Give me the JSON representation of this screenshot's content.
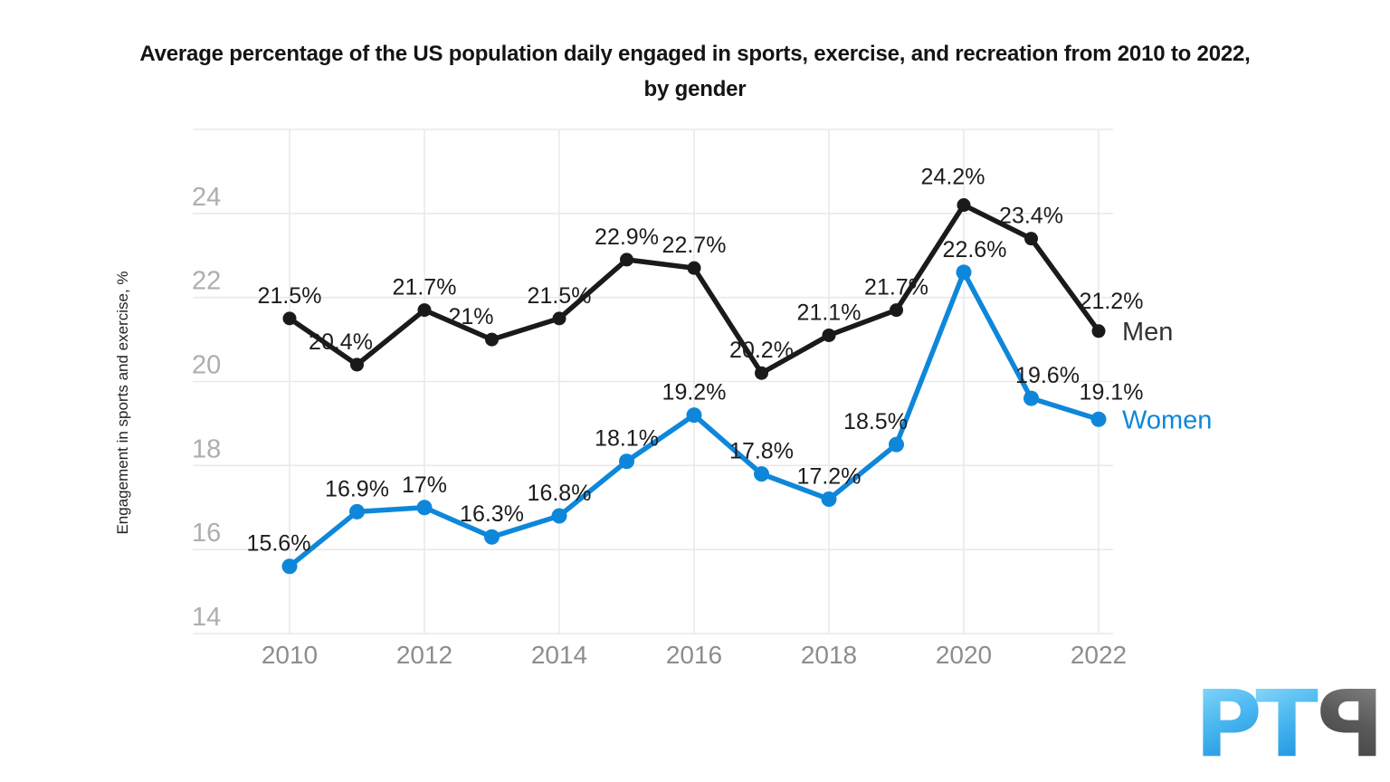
{
  "title": {
    "line1": "Average percentage of the US population daily engaged in sports, exercise, and recreation from 2010 to 2022,",
    "line2": "by gender"
  },
  "chart_data": {
    "type": "line",
    "x": [
      2010,
      2011,
      2012,
      2013,
      2014,
      2015,
      2016,
      2017,
      2018,
      2019,
      2020,
      2021,
      2022
    ],
    "x_tick_labels": [
      "2010",
      "2012",
      "2014",
      "2016",
      "2018",
      "2020",
      "2022"
    ],
    "ylabel": "Engagement in sports and exercise, %",
    "y_ticks": [
      14,
      16,
      18,
      20,
      22,
      24
    ],
    "ylim": [
      14,
      26
    ],
    "grid": true,
    "legend_position": "line-end",
    "series": [
      {
        "name": "Men",
        "color": "#1a1a1a",
        "label_color": "#333333",
        "values": [
          21.5,
          20.4,
          21.7,
          21,
          21.5,
          22.9,
          22.7,
          20.2,
          21.1,
          21.7,
          24.2,
          23.4,
          21.2
        ],
        "labels": [
          "21.5%",
          "20.4%",
          "21.7%",
          "21%",
          "21.5%",
          "22.9%",
          "22.7%",
          "20.2%",
          "21.1%",
          "21.7%",
          "24.2%",
          "23.4%",
          "21.2%"
        ]
      },
      {
        "name": "Women",
        "color": "#0e87da",
        "label_color": "#0e87da",
        "values": [
          15.6,
          16.9,
          17,
          16.3,
          16.8,
          18.1,
          19.2,
          17.8,
          17.2,
          18.5,
          22.6,
          19.6,
          19.1
        ],
        "labels": [
          "15.6%",
          "16.9%",
          "17%",
          "16.3%",
          "16.8%",
          "18.1%",
          "19.2%",
          "17.8%",
          "17.2%",
          "18.5%",
          "22.6%",
          "19.6%",
          "19.1%"
        ]
      }
    ]
  },
  "axis_colors": {
    "y_tick": "#aeaeae",
    "x_tick": "#8d8d8d",
    "grid": "#e9e9e9",
    "data_label": "#1c1c1c"
  },
  "logo": {
    "letters": [
      "P",
      "T",
      "P"
    ],
    "blue": "#0d86d8",
    "gray": "#4a4a4a"
  }
}
